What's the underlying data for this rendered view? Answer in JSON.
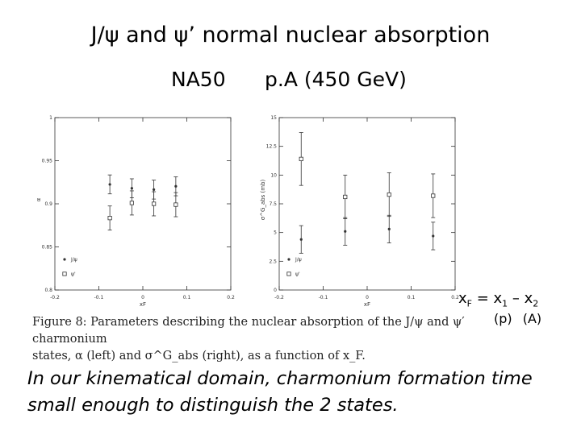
{
  "title": "J/ψ and ψ’ normal nuclear absorption",
  "subtitle_left": "NA50",
  "subtitle_right": "p.A  (450 GeV)",
  "xf_equation": {
    "lhs": "x",
    "lhs_sub": "F",
    "eq": " = ",
    "x1": "x",
    "x1_sub": "1",
    "minus": " – ",
    "x2": "x",
    "x2_sub": "2"
  },
  "equation_labels": "(p) (A)",
  "caption": {
    "line1": "Figure 8: Parameters describing the nuclear absorption of the J/ψ and ψ′ charmonium",
    "line2": "states, α (left) and σ^G_abs (right), as a function of x_F."
  },
  "bottom_text": "In our kinematical domain, charmonium formation time small enough to distinguish the 2 states.",
  "chart_data": [
    {
      "type": "scatter",
      "title": "",
      "xlabel": "xF",
      "ylabel": "α",
      "xlim": [
        -0.2,
        0.2
      ],
      "ylim": [
        0.8,
        1.0
      ],
      "xticks": [
        "-0.2",
        "-0.1",
        "0",
        "0.1",
        "0.2"
      ],
      "yticks": [
        "0.8",
        "0.85",
        "0.9",
        "0.95",
        "1"
      ],
      "legend": [
        "J/ψ",
        "ψ'"
      ],
      "series": [
        {
          "name": "J/ψ",
          "marker": "dot",
          "x": [
            -0.075,
            -0.025,
            0.025,
            0.075
          ],
          "y": [
            0.9225,
            0.918,
            0.9165,
            0.9203
          ],
          "err": [
            0.011,
            0.011,
            0.011,
            0.011
          ]
        },
        {
          "name": "ψ'",
          "marker": "square",
          "x": [
            -0.075,
            -0.025,
            0.025,
            0.075
          ],
          "y": [
            0.8835,
            0.901,
            0.9,
            0.899
          ],
          "err": [
            0.014,
            0.014,
            0.014,
            0.014
          ]
        }
      ]
    },
    {
      "type": "scatter",
      "title": "",
      "xlabel": "xF",
      "ylabel": "σ^G_abs (mb)",
      "xlim": [
        -0.2,
        0.2
      ],
      "ylim": [
        0,
        15
      ],
      "xticks": [
        "-0.2",
        "-0.1",
        "0",
        "0.1",
        "0.2"
      ],
      "yticks": [
        "0",
        "2.5",
        "5",
        "7.5",
        "10",
        "12.5",
        "15"
      ],
      "legend": [
        "J/ψ",
        "ψ'"
      ],
      "series": [
        {
          "name": "J/ψ",
          "marker": "dot",
          "x": [
            -0.15,
            -0.05,
            0.05,
            0.15
          ],
          "y": [
            4.4,
            5.1,
            5.3,
            4.7
          ],
          "err": [
            1.2,
            1.2,
            1.2,
            1.2
          ]
        },
        {
          "name": "ψ'",
          "marker": "square",
          "x": [
            -0.15,
            -0.05,
            0.05,
            0.15
          ],
          "y": [
            11.4,
            8.1,
            8.3,
            8.2
          ],
          "err": [
            2.3,
            1.9,
            1.9,
            1.9
          ]
        }
      ]
    }
  ]
}
